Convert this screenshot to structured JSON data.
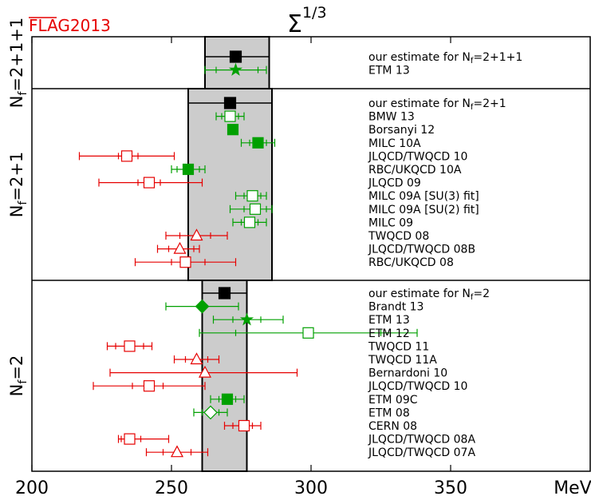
{
  "chart_data": {
    "type": "scatter",
    "title_base": "Σ",
    "title_sup": "1/3",
    "logo": "FLAG2013",
    "unit": "MeV",
    "xlim": [
      200,
      400
    ],
    "xticks": [
      200,
      250,
      300,
      350
    ],
    "colors": {
      "estimate": "#000000",
      "green": "#00a000",
      "red": "#e60000",
      "band": "#cccccc"
    },
    "panels": [
      {
        "group_label": "N_f=2+1+1",
        "group_main": "N",
        "group_sub": "f",
        "group_rest": "=2+1+1",
        "band": [
          262,
          285
        ],
        "rows": [
          {
            "label_main": "our estimate for N",
            "label_sub": "f",
            "label_rest": "=2+1+1",
            "value": 273,
            "err": [
              262,
              285
            ],
            "err2": null,
            "color": "estimate",
            "marker": "square",
            "filled": true
          },
          {
            "label_main": "ETM 13",
            "label_sub": "",
            "label_rest": "",
            "value": 273,
            "err": [
              262,
              284
            ],
            "err2": [
              266,
              281
            ],
            "color": "green",
            "marker": "star",
            "filled": true
          }
        ]
      },
      {
        "group_label": "N_f=2+1",
        "group_main": "N",
        "group_sub": "f",
        "group_rest": "=2+1",
        "band": [
          256,
          286
        ],
        "rows": [
          {
            "label_main": "our estimate for N",
            "label_sub": "f",
            "label_rest": "=2+1",
            "value": 271,
            "err": [
              256,
              286
            ],
            "err2": null,
            "color": "estimate",
            "marker": "square",
            "filled": true
          },
          {
            "label_main": "BMW 13",
            "label_sub": "",
            "label_rest": "",
            "value": 271,
            "err": [
              266,
              276
            ],
            "err2": [
              268,
              274
            ],
            "color": "green",
            "marker": "square",
            "filled": false
          },
          {
            "label_main": "Borsanyi 12",
            "label_sub": "",
            "label_rest": "",
            "value": 272,
            "err": null,
            "err2": null,
            "color": "green",
            "marker": "square",
            "filled": true
          },
          {
            "label_main": "MILC 10A",
            "label_sub": "",
            "label_rest": "",
            "value": 281,
            "err": [
              275,
              287
            ],
            "err2": [
              278,
              284
            ],
            "color": "green",
            "marker": "square",
            "filled": true
          },
          {
            "label_main": "JLQCD/TWQCD 10",
            "label_sub": "",
            "label_rest": "",
            "value": 234,
            "err": [
              217,
              251
            ],
            "err2": [
              231,
              238
            ],
            "color": "red",
            "marker": "square",
            "filled": false
          },
          {
            "label_main": "RBC/UKQCD 10A",
            "label_sub": "",
            "label_rest": "",
            "value": 256,
            "err": [
              250,
              262
            ],
            "err2": [
              252,
              260
            ],
            "color": "green",
            "marker": "square",
            "filled": true
          },
          {
            "label_main": "JLQCD 09",
            "label_sub": "",
            "label_rest": "",
            "value": 242,
            "err": [
              224,
              261
            ],
            "err2": [
              238,
              246
            ],
            "color": "red",
            "marker": "square",
            "filled": false
          },
          {
            "label_main": "MILC 09A [SU(3) fit]",
            "label_sub": "",
            "label_rest": "",
            "value": 279,
            "err": [
              273,
              284
            ],
            "err2": [
              276,
              282
            ],
            "color": "green",
            "marker": "square",
            "filled": false
          },
          {
            "label_main": "MILC 09A [SU(2) fit]",
            "label_sub": "",
            "label_rest": "",
            "value": 280,
            "err": [
              271,
              286
            ],
            "err2": [
              276,
              284
            ],
            "color": "green",
            "marker": "square",
            "filled": false
          },
          {
            "label_main": "MILC 09",
            "label_sub": "",
            "label_rest": "",
            "value": 278,
            "err": [
              272,
              284
            ],
            "err2": [
              275,
              281
            ],
            "color": "green",
            "marker": "square",
            "filled": false
          },
          {
            "label_main": "TWQCD 08",
            "label_sub": "",
            "label_rest": "",
            "value": 259,
            "err": [
              248,
              270
            ],
            "err2": [
              253,
              264
            ],
            "color": "red",
            "marker": "triangle",
            "filled": false
          },
          {
            "label_main": "JLQCD/TWQCD 08B",
            "label_sub": "",
            "label_rest": "",
            "value": 253,
            "err": [
              245,
              260
            ],
            "err2": [
              249,
              258
            ],
            "color": "red",
            "marker": "triangle",
            "filled": false
          },
          {
            "label_main": "RBC/UKQCD 08",
            "label_sub": "",
            "label_rest": "",
            "value": 255,
            "err": [
              237,
              273
            ],
            "err2": [
              250,
              262
            ],
            "color": "red",
            "marker": "square",
            "filled": false
          }
        ]
      },
      {
        "group_label": "N_f=2",
        "group_main": "N",
        "group_sub": "f",
        "group_rest": "=2",
        "band": [
          261,
          277
        ],
        "rows": [
          {
            "label_main": "our estimate for N",
            "label_sub": "f",
            "label_rest": "=2",
            "value": 269,
            "err": [
              261,
              277
            ],
            "err2": null,
            "color": "estimate",
            "marker": "square",
            "filled": true
          },
          {
            "label_main": "Brandt 13",
            "label_sub": "",
            "label_rest": "",
            "value": 261,
            "err": [
              248,
              274
            ],
            "err2": null,
            "color": "green",
            "marker": "diamond",
            "filled": true
          },
          {
            "label_main": "ETM 13",
            "label_sub": "",
            "label_rest": "",
            "value": 277,
            "err": [
              265,
              290
            ],
            "err2": [
              272,
              282
            ],
            "color": "green",
            "marker": "star",
            "filled": true
          },
          {
            "label_main": "ETM 12",
            "label_sub": "",
            "label_rest": "",
            "value": 299,
            "err": [
              260,
              338
            ],
            "err2": [
              273,
              325
            ],
            "color": "green",
            "marker": "square",
            "filled": false
          },
          {
            "label_main": "TWQCD 11",
            "label_sub": "",
            "label_rest": "",
            "value": 235,
            "err": [
              227,
              243
            ],
            "err2": [
              230,
              240
            ],
            "color": "red",
            "marker": "square",
            "filled": false
          },
          {
            "label_main": "TWQCD 11A",
            "label_sub": "",
            "label_rest": "",
            "value": 259,
            "err": [
              251,
              267
            ],
            "err2": [
              255,
              263
            ],
            "color": "red",
            "marker": "triangle",
            "filled": false
          },
          {
            "label_main": "Bernardoni 10",
            "label_sub": "",
            "label_rest": "",
            "value": 262,
            "err": [
              228,
              295
            ],
            "err2": null,
            "color": "red",
            "marker": "triangle",
            "filled": false
          },
          {
            "label_main": "JLQCD/TWQCD 10",
            "label_sub": "",
            "label_rest": "",
            "value": 242,
            "err": [
              222,
              262
            ],
            "err2": [
              236,
              247
            ],
            "color": "red",
            "marker": "square",
            "filled": false
          },
          {
            "label_main": "ETM 09C",
            "label_sub": "",
            "label_rest": "",
            "value": 270,
            "err": [
              264,
              276
            ],
            "err2": [
              267,
              273
            ],
            "color": "green",
            "marker": "square",
            "filled": true
          },
          {
            "label_main": "ETM 08",
            "label_sub": "",
            "label_rest": "",
            "value": 264,
            "err": [
              258,
              270
            ],
            "err2": [
              261,
              267
            ],
            "color": "green",
            "marker": "diamond",
            "filled": false
          },
          {
            "label_main": "CERN 08",
            "label_sub": "",
            "label_rest": "",
            "value": 276,
            "err": [
              269,
              282
            ],
            "err2": [
              272,
              279
            ],
            "color": "red",
            "marker": "square",
            "filled": false
          },
          {
            "label_main": "JLQCD/TWQCD 08A",
            "label_sub": "",
            "label_rest": "",
            "value": 235,
            "err": [
              231,
              249
            ],
            "err2": [
              232,
              239
            ],
            "color": "red",
            "marker": "square",
            "filled": false
          },
          {
            "label_main": "JLQCD/TWQCD 07A",
            "label_sub": "",
            "label_rest": "",
            "value": 252,
            "err": [
              241,
              263
            ],
            "err2": [
              247,
              257
            ],
            "color": "red",
            "marker": "triangle",
            "filled": false
          }
        ]
      }
    ]
  }
}
